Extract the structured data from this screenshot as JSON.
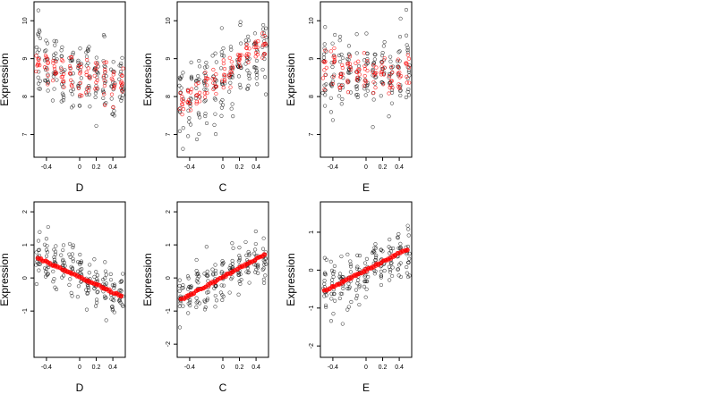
{
  "chart_data": [
    {
      "type": "scatter",
      "xlabel": "D",
      "ylabel": "Expression",
      "xlim": [
        -0.55,
        0.55
      ],
      "ylim": [
        6.4,
        10.5
      ],
      "xticks": [
        -0.4,
        0.0,
        0.2,
        0.4
      ],
      "yticks": [
        7,
        8,
        9,
        10
      ],
      "x_levels": [
        -0.5,
        -0.4,
        -0.3,
        -0.2,
        -0.1,
        0.0,
        0.1,
        0.2,
        0.3,
        0.4,
        0.5
      ],
      "observed_mean": [
        8.9,
        8.8,
        8.8,
        8.7,
        8.7,
        8.6,
        8.6,
        8.5,
        8.4,
        8.3,
        8.2
      ],
      "observed_spread": 0.9,
      "fitted_red": "scattered per-level predictions, range 7.8 to 9.5",
      "fitted_mean": [
        8.8,
        8.8,
        8.75,
        8.7,
        8.65,
        8.6,
        8.55,
        8.5,
        8.45,
        8.4,
        8.35
      ],
      "fitted_spread": 0.5
    },
    {
      "type": "scatter",
      "xlabel": "C",
      "ylabel": "Expression",
      "xlim": [
        -0.55,
        0.55
      ],
      "ylim": [
        6.4,
        10.5
      ],
      "xticks": [
        -0.4,
        0.0,
        0.2,
        0.4
      ],
      "yticks": [
        7,
        8,
        9,
        10
      ],
      "x_levels": [
        -0.5,
        -0.4,
        -0.3,
        -0.2,
        -0.1,
        0.0,
        0.1,
        0.2,
        0.3,
        0.4,
        0.5
      ],
      "observed_mean": [
        7.9,
        8.0,
        8.1,
        8.3,
        8.4,
        8.5,
        8.7,
        8.8,
        8.9,
        9.0,
        9.1
      ],
      "observed_spread": 0.9,
      "fitted_mean": [
        7.8,
        7.95,
        8.1,
        8.3,
        8.45,
        8.6,
        8.8,
        8.95,
        9.1,
        9.3,
        9.4
      ],
      "fitted_spread": 0.35
    },
    {
      "type": "scatter",
      "xlabel": "E",
      "ylabel": "Expression",
      "xlim": [
        -0.55,
        0.55
      ],
      "ylim": [
        6.4,
        10.5
      ],
      "xticks": [
        -0.4,
        0.0,
        0.2,
        0.4
      ],
      "yticks": [
        7,
        8,
        9,
        10
      ],
      "x_levels": [
        -0.5,
        -0.4,
        -0.3,
        -0.2,
        -0.1,
        0.0,
        0.1,
        0.2,
        0.3,
        0.4,
        0.5
      ],
      "observed_mean": [
        8.5,
        8.5,
        8.5,
        8.6,
        8.6,
        8.6,
        8.6,
        8.7,
        8.5,
        8.7,
        8.8
      ],
      "observed_spread": 0.9,
      "fitted_mean": [
        8.7,
        8.7,
        8.6,
        8.6,
        8.6,
        8.6,
        8.6,
        8.6,
        8.5,
        8.6,
        8.7
      ],
      "fitted_spread": 0.5
    },
    {
      "type": "scatter",
      "xlabel": "D",
      "ylabel": "Expression",
      "xlim": [
        -0.55,
        0.55
      ],
      "ylim": [
        -2.4,
        2.3
      ],
      "xticks": [
        -0.4,
        0.0,
        0.2,
        0.4
      ],
      "yticks": [
        -1,
        0,
        1,
        2
      ],
      "x_levels": [
        -0.5,
        -0.4,
        -0.3,
        -0.2,
        -0.1,
        0.0,
        0.1,
        0.2,
        0.3,
        0.4,
        0.5
      ],
      "observed_mean": [
        0.6,
        0.5,
        0.4,
        0.3,
        0.15,
        0.0,
        -0.1,
        -0.2,
        -0.3,
        -0.4,
        -0.5
      ],
      "observed_spread": 0.65,
      "fitted_line": {
        "x": [
          -0.5,
          0.5
        ],
        "y": [
          0.6,
          -0.55
        ]
      }
    },
    {
      "type": "scatter",
      "xlabel": "C",
      "ylabel": "Expression",
      "xlim": [
        -0.55,
        0.55
      ],
      "ylim": [
        -2.4,
        2.3
      ],
      "xticks": [
        -0.4,
        0.0,
        0.2,
        0.4
      ],
      "yticks": [
        -2,
        -1,
        0,
        1,
        2
      ],
      "x_levels": [
        -0.5,
        -0.4,
        -0.3,
        -0.2,
        -0.1,
        0.0,
        0.1,
        0.2,
        0.3,
        0.4,
        0.5
      ],
      "observed_mean": [
        -0.6,
        -0.5,
        -0.35,
        -0.25,
        -0.1,
        0.05,
        0.2,
        0.3,
        0.45,
        0.55,
        0.7
      ],
      "observed_spread": 0.7,
      "fitted_line": {
        "x": [
          -0.5,
          0.5
        ],
        "y": [
          -0.65,
          0.7
        ]
      }
    },
    {
      "type": "scatter",
      "xlabel": "E",
      "ylabel": "Expression",
      "xlim": [
        -0.55,
        0.55
      ],
      "ylim": [
        -2.3,
        1.8
      ],
      "xticks": [
        -0.4,
        0.0,
        0.2,
        0.4
      ],
      "yticks": [
        -2,
        -1,
        0,
        1
      ],
      "x_levels": [
        -0.5,
        -0.4,
        -0.3,
        -0.2,
        -0.1,
        0.0,
        0.1,
        0.2,
        0.3,
        0.4,
        0.5
      ],
      "observed_mean": [
        -0.5,
        -0.4,
        -0.3,
        -0.2,
        -0.1,
        0.0,
        0.1,
        0.2,
        0.3,
        0.4,
        0.5
      ],
      "observed_spread": 0.65,
      "fitted_line": {
        "x": [
          -0.5,
          0.5
        ],
        "y": [
          -0.55,
          0.55
        ]
      }
    }
  ],
  "colors": {
    "observed": "#000000",
    "fitted": "#ff0000",
    "axis": "#000000",
    "background": "#ffffff"
  }
}
